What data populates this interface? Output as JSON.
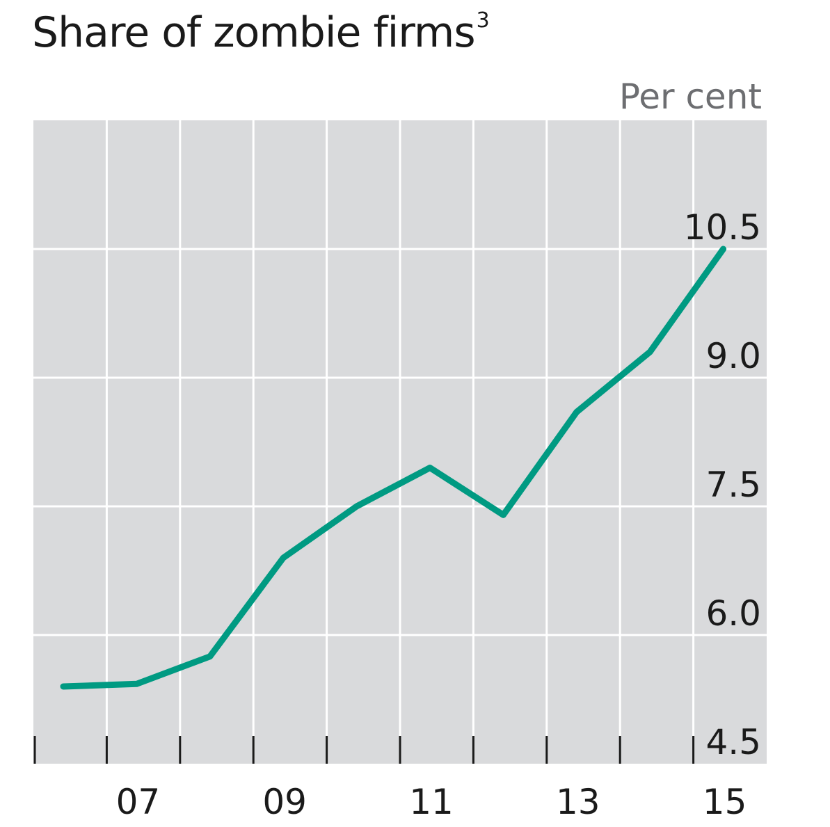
{
  "chart_data": {
    "type": "line",
    "title": "Share of zombie firms",
    "title_footnote": "3",
    "unit_label": "Per cent",
    "x": [
      2006,
      2007,
      2008,
      2009,
      2010,
      2011,
      2012,
      2013,
      2014,
      2015
    ],
    "x_tick_values": [
      2007,
      2009,
      2011,
      2013,
      2015
    ],
    "x_tick_labels": [
      "07",
      "09",
      "11",
      "13",
      "15"
    ],
    "xlim": [
      2006,
      2016
    ],
    "y_ticks": [
      4.5,
      6.0,
      7.5,
      9.0,
      10.5
    ],
    "y_tick_labels": [
      "4.5",
      "6.0",
      "7.5",
      "9.0",
      "10.5"
    ],
    "ylim": [
      4.5,
      12.0
    ],
    "series": [
      {
        "values": [
          5.4,
          5.43,
          5.75,
          6.9,
          7.5,
          7.95,
          7.4,
          8.6,
          9.3,
          10.5
        ],
        "color": "#009a82"
      }
    ],
    "plot_background": "#d9dadc",
    "gridline_color": "#ffffff",
    "grid": true,
    "y_axis_position": "right"
  }
}
